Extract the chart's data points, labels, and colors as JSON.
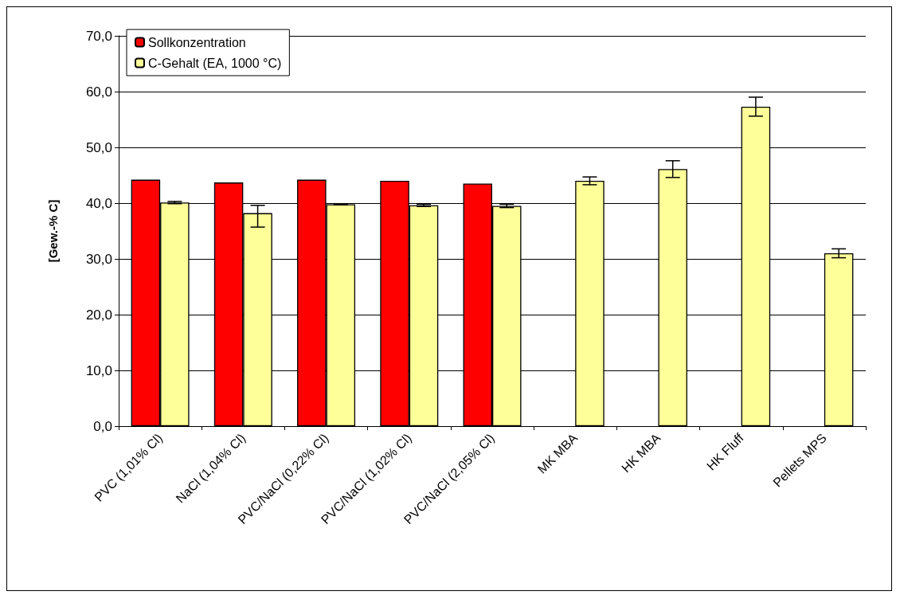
{
  "chart_data": {
    "type": "bar",
    "ylabel": "[Gew.-% C]",
    "categories": [
      "PVC (1,01% Cl)",
      "NaCl (1,04% Cl)",
      "PVC/NaCl (0,22% Cl)",
      "PVC/NaCl (1,02% Cl)",
      "PVC/NaCl (2,05% Cl)",
      "MK MBA",
      "HK MBA",
      "HK Fluff",
      "Pellets MPS"
    ],
    "series": [
      {
        "name": "Sollkonzentration",
        "color": "#ff0000",
        "values": [
          44.2,
          43.7,
          44.2,
          44.0,
          43.5,
          null,
          null,
          null,
          null
        ]
      },
      {
        "name": "C-Gehalt (EA, 1000 °C)",
        "color": "#ffff99",
        "values": [
          40.1,
          38.2,
          39.8,
          39.6,
          39.5,
          44.0,
          46.1,
          57.3,
          31.0
        ],
        "errors": [
          0.2,
          [
            35.7,
            39.6
          ],
          0.1,
          0.2,
          0.3,
          0.7,
          1.5,
          1.7,
          0.8
        ]
      }
    ],
    "ylim": [
      0,
      70
    ],
    "yticks": [
      {
        "value": 0,
        "label": "0,0"
      },
      {
        "value": 10,
        "label": "10,0"
      },
      {
        "value": 20,
        "label": "20,0"
      },
      {
        "value": 30,
        "label": "30,0"
      },
      {
        "value": 40,
        "label": "40,0"
      },
      {
        "value": 50,
        "label": "50,0"
      },
      {
        "value": 60,
        "label": "60,0"
      },
      {
        "value": 70,
        "label": "70,0"
      }
    ],
    "grid": "y",
    "legend": "top left"
  }
}
